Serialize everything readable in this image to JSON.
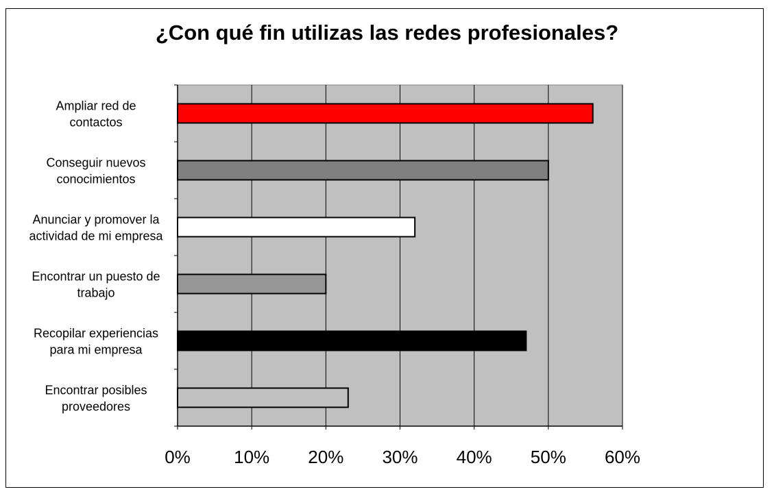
{
  "chart_data": {
    "type": "bar",
    "orientation": "horizontal",
    "title": "¿Con qué fin utilizas las redes profesionales?",
    "categories": [
      [
        "Ampliar red de",
        "contactos"
      ],
      [
        "Conseguir nuevos",
        "conocimientos"
      ],
      [
        "Anunciar y promover la",
        "actividad de mi empresa"
      ],
      [
        "Encontrar un puesto de",
        "trabajo"
      ],
      [
        "Recopilar experiencias",
        "para mi empresa"
      ],
      [
        "Encontrar posibles",
        "proveedores"
      ]
    ],
    "values": [
      56,
      50,
      32,
      20,
      47,
      23
    ],
    "bar_colors": [
      "#ff0000",
      "#808080",
      "#ffffff",
      "#969696",
      "#000000",
      "#c0c0c0"
    ],
    "xlim": [
      0,
      60
    ],
    "xticks": [
      "0%",
      "10%",
      "20%",
      "30%",
      "40%",
      "50%",
      "60%"
    ],
    "plot_background": "#c0c0c0",
    "grid": true,
    "legend": false
  }
}
